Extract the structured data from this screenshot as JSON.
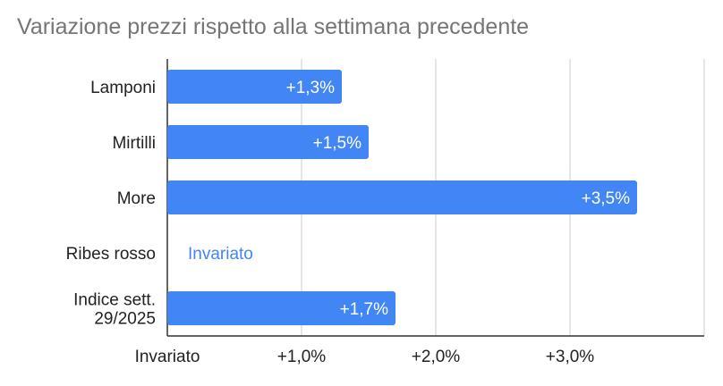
{
  "chart_data": {
    "type": "bar",
    "orientation": "horizontal",
    "title": "Variazione prezzi rispetto alla settimana precedente",
    "categories": [
      "Lamponi",
      "Mirtilli",
      "More",
      "Ribes rosso",
      "Indice sett. 29/2025"
    ],
    "values": [
      1.3,
      1.5,
      3.5,
      0,
      1.7
    ],
    "data_labels": [
      "+1,3%",
      "+1,5%",
      "+3,5%",
      "Invariato",
      "+1,7%"
    ],
    "x_ticks": [
      {
        "value": 0,
        "label": "Invariato"
      },
      {
        "value": 1,
        "label": "+1,0%"
      },
      {
        "value": 2,
        "label": "+2,0%"
      },
      {
        "value": 3,
        "label": "+3,0%"
      }
    ],
    "xlim": [
      0,
      4
    ],
    "grid": true,
    "legend": "none",
    "colors": {
      "bar": "#4285f4",
      "label_inside": "#ffffff",
      "label_outside": "#4285f4",
      "grid": "#cccccc",
      "axis": "#333333",
      "title": "#757575",
      "text": "#222222"
    }
  }
}
